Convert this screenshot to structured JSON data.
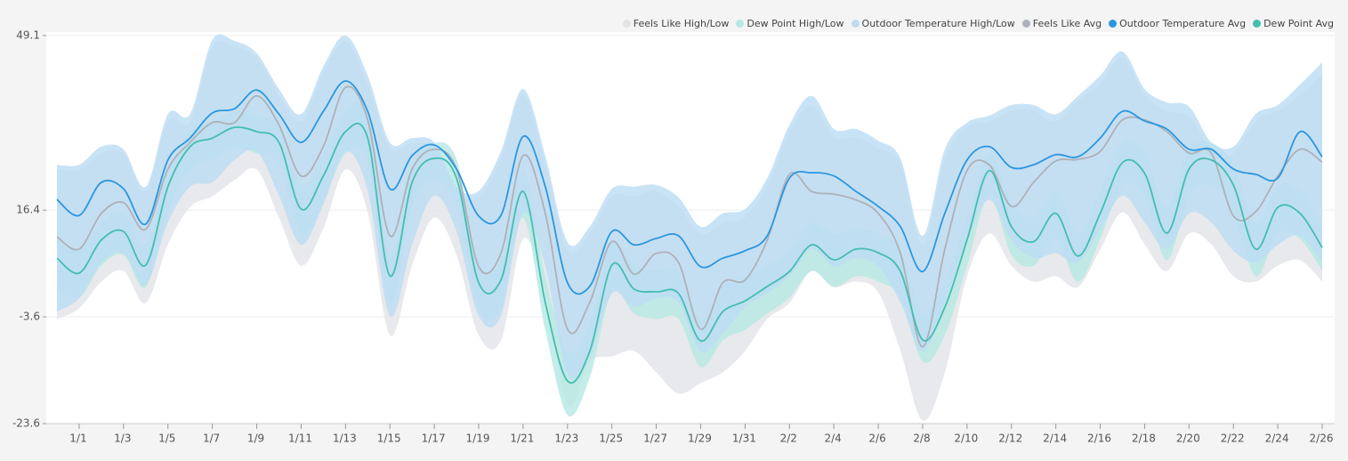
{
  "chart_data": {
    "type": "line",
    "categories": [
      null,
      "1/1",
      null,
      "1/3",
      null,
      "1/5",
      null,
      "1/7",
      null,
      "1/9",
      null,
      "1/11",
      null,
      "1/13",
      null,
      "1/15",
      null,
      "1/17",
      null,
      "1/19",
      null,
      "1/21",
      null,
      "1/23",
      null,
      "1/25",
      null,
      "1/27",
      null,
      "1/29",
      null,
      "1/31",
      null,
      "2/2",
      null,
      "2/4",
      null,
      "2/6",
      null,
      "2/8",
      null,
      "2/10",
      null,
      "2/12",
      null,
      "2/14",
      null,
      "2/16",
      null,
      "2/18",
      null,
      "2/20",
      null,
      "2/22",
      null,
      "2/24",
      null,
      "2/26"
    ],
    "ylim": [
      -23.6,
      49.1
    ],
    "yticks": [
      -23.6,
      -3.6,
      16.4,
      49.1
    ],
    "grid": true,
    "legend": "top-right",
    "series": [
      {
        "name": "Feels Like High/Low",
        "type": "band",
        "color": "#e2e4e7",
        "high": [
          24,
          24,
          27,
          27,
          20,
          33,
          33,
          47,
          47,
          45,
          38,
          33,
          42,
          48,
          40,
          28,
          29,
          28,
          20,
          19,
          26,
          38,
          25,
          9,
          12,
          19,
          19,
          20,
          17,
          12,
          14,
          15,
          21,
          31,
          36,
          30,
          30,
          28,
          25,
          10,
          26,
          32,
          33,
          35,
          35,
          33,
          37,
          40,
          45,
          38,
          35,
          34,
          28,
          27,
          33,
          35,
          38,
          42
        ],
        "low": [
          -4,
          -2,
          3,
          5,
          -1,
          10,
          17,
          19,
          22,
          24,
          15,
          6,
          13,
          24,
          16,
          -7,
          6,
          15,
          8,
          -7,
          -8,
          11,
          1,
          -20,
          -12,
          -11,
          -10,
          -14,
          -18,
          -16,
          -14,
          -10,
          -4,
          -1,
          5,
          2,
          3,
          1,
          -10,
          -23,
          -14,
          4,
          12,
          6,
          3,
          4,
          2,
          9,
          16,
          10,
          5,
          12,
          10,
          4,
          3,
          6,
          7,
          3
        ]
      },
      {
        "name": "Dew Point High/Low",
        "type": "band",
        "color": "#b5e8e3",
        "high": [
          11,
          9,
          14,
          16,
          10,
          24,
          31,
          33,
          35,
          34,
          32,
          21,
          27,
          35,
          34,
          8,
          25,
          29,
          26,
          7,
          7,
          24,
          4,
          -10,
          -5,
          10,
          6,
          5,
          5,
          -4,
          2,
          4,
          6,
          9,
          14,
          12,
          13,
          12,
          9,
          -3,
          3,
          15,
          27,
          18,
          15,
          20,
          12,
          20,
          29,
          27,
          17,
          28,
          29,
          25,
          14,
          21,
          20,
          14
        ],
        "low": [
          2,
          0,
          6,
          8,
          2,
          16,
          24,
          26,
          28,
          27,
          25,
          12,
          18,
          27,
          25,
          -1,
          17,
          22,
          17,
          -2,
          -2,
          15,
          -6,
          -22,
          -15,
          1,
          -3,
          -4,
          -4,
          -13,
          -8,
          -6,
          -3,
          0,
          5,
          2,
          4,
          3,
          0,
          -12,
          -7,
          6,
          19,
          8,
          6,
          11,
          3,
          11,
          21,
          19,
          7,
          19,
          21,
          16,
          4,
          12,
          11,
          5
        ]
      },
      {
        "name": "Outdoor Temperature High/Low",
        "type": "band",
        "color": "#bcdcf4",
        "high": [
          24.9,
          24.9,
          28.3,
          27.8,
          20.8,
          34.4,
          34.4,
          48.3,
          48.1,
          45.8,
          39.1,
          34.4,
          43.3,
          49.1,
          41.6,
          29.1,
          29.9,
          29.1,
          20.8,
          20.0,
          27.4,
          39.1,
          26.6,
          10.4,
          13.3,
          20.4,
          20.8,
          21.1,
          18.8,
          13.3,
          15.8,
          16.6,
          22.4,
          32.4,
          37.8,
          31.6,
          31.6,
          29.4,
          26.1,
          11.6,
          27.8,
          32.8,
          34.1,
          36.1,
          36.1,
          34.4,
          37.8,
          41.6,
          46.1,
          39.1,
          36.6,
          35.8,
          29.1,
          28.3,
          34.4,
          36.1,
          39.9,
          44.1
        ],
        "low": [
          -2.6,
          -0.1,
          6.6,
          8.3,
          2.4,
          14.1,
          20.8,
          21.6,
          25.8,
          27.4,
          19.1,
          9.9,
          17.4,
          27.4,
          20.0,
          -3.4,
          9.9,
          19.1,
          12.4,
          -3.4,
          -3.4,
          15.8,
          5.8,
          -14.2,
          -10.9,
          0.8,
          -1.7,
          -0.1,
          -0.9,
          -10.1,
          -6.7,
          -1.7,
          0.8,
          4.1,
          9.1,
          5.8,
          7.4,
          5.8,
          -0.9,
          -10.1,
          -0.9,
          10.8,
          18.3,
          10.8,
          7.4,
          8.3,
          6.6,
          12.8,
          19.1,
          14.1,
          9.1,
          15.8,
          14.1,
          8.8,
          6.6,
          9.9,
          11.6,
          6.6
        ]
      },
      {
        "name": "Feels Like Avg",
        "color": "#adb1b8",
        "values": [
          11.4,
          9.1,
          15.8,
          17.8,
          12.8,
          24.1,
          29.1,
          32.8,
          32.8,
          37.8,
          32.4,
          22.8,
          28.3,
          39.4,
          33.3,
          11.6,
          24.1,
          27.8,
          24.1,
          5.8,
          8.3,
          26.6,
          15.8,
          -5.9,
          -0.9,
          10.5,
          4.4,
          8.3,
          6.6,
          -5.9,
          2.8,
          3.3,
          10.8,
          23.1,
          19.9,
          19.4,
          18.3,
          15.8,
          8.3,
          -9.2,
          9.1,
          23.8,
          24.9,
          17.1,
          21.6,
          25.6,
          25.9,
          27.4,
          33.3,
          33.3,
          31.1,
          27.1,
          27.1,
          15.3,
          16.1,
          22.8,
          27.8,
          25.4
        ]
      },
      {
        "name": "Outdoor Temperature Avg",
        "color": "#2a97e0",
        "values": [
          18.4,
          15.4,
          21.6,
          20.4,
          13.8,
          25.8,
          29.9,
          34.6,
          35.4,
          38.9,
          34.4,
          29.1,
          34.9,
          40.6,
          34.9,
          20.4,
          26.6,
          28.6,
          24.1,
          15.3,
          15.4,
          30.2,
          20.8,
          2.8,
          2.1,
          12.4,
          9.9,
          11.1,
          11.6,
          5.8,
          7.4,
          8.8,
          11.6,
          22.4,
          23.4,
          22.8,
          19.9,
          17.1,
          13.3,
          4.9,
          15.8,
          25.8,
          28.3,
          24.4,
          24.9,
          26.8,
          26.4,
          29.9,
          34.9,
          33.1,
          31.6,
          27.8,
          27.8,
          24.1,
          23.1,
          22.4,
          31.1,
          26.4
        ]
      },
      {
        "name": "Dew Point Avg",
        "color": "#45bdb1",
        "values": [
          7.4,
          4.6,
          10.8,
          12.4,
          6.1,
          20.8,
          28.3,
          29.9,
          31.9,
          31.1,
          29.1,
          16.6,
          22.8,
          31.1,
          29.9,
          4.1,
          21.6,
          26.1,
          22.4,
          2.8,
          3.3,
          19.9,
          -0.9,
          -15.6,
          -10.1,
          6.1,
          1.6,
          1.1,
          0.8,
          -8.1,
          -2.6,
          -0.6,
          2.1,
          4.9,
          9.9,
          7.1,
          9.1,
          8.4,
          4.9,
          -7.9,
          -1.8,
          10.8,
          23.8,
          13.3,
          10.5,
          15.8,
          7.8,
          15.8,
          25.3,
          23.3,
          12.1,
          24.1,
          25.8,
          21.1,
          9.1,
          16.9,
          15.8,
          9.4
        ]
      }
    ]
  }
}
